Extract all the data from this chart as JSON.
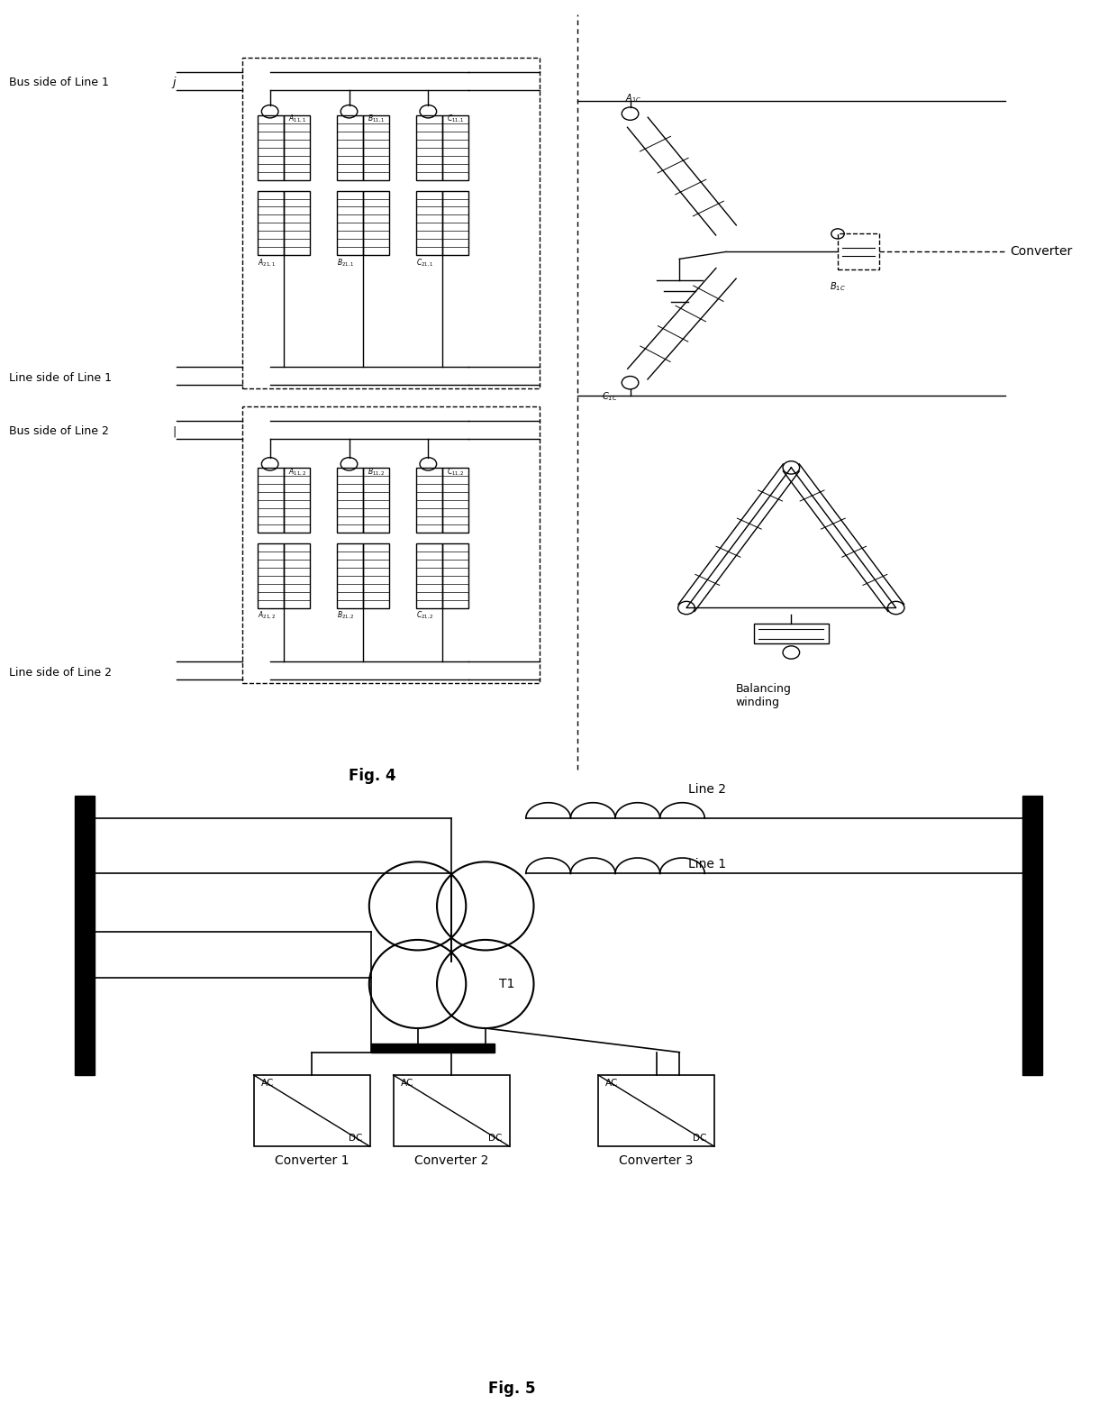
{
  "fig4_title": "Fig. 4",
  "fig5_title": "Fig. 5",
  "background_color": "#ffffff",
  "line_color": "#000000",
  "labels_fig4_left": [
    "Bus side of Line 1",
    "Line side of Line 1",
    "Bus side of Line 2",
    "Line side of Line 2"
  ],
  "converter_label": "Converter",
  "balancing_label": "Balancing\nwinding",
  "converter1_label": "Converter 1",
  "converter2_label": "Converter 2",
  "converter3_label": "Converter 3",
  "T1_label": "T1",
  "line1_label": "Line 1",
  "line2_label": "Line 2"
}
